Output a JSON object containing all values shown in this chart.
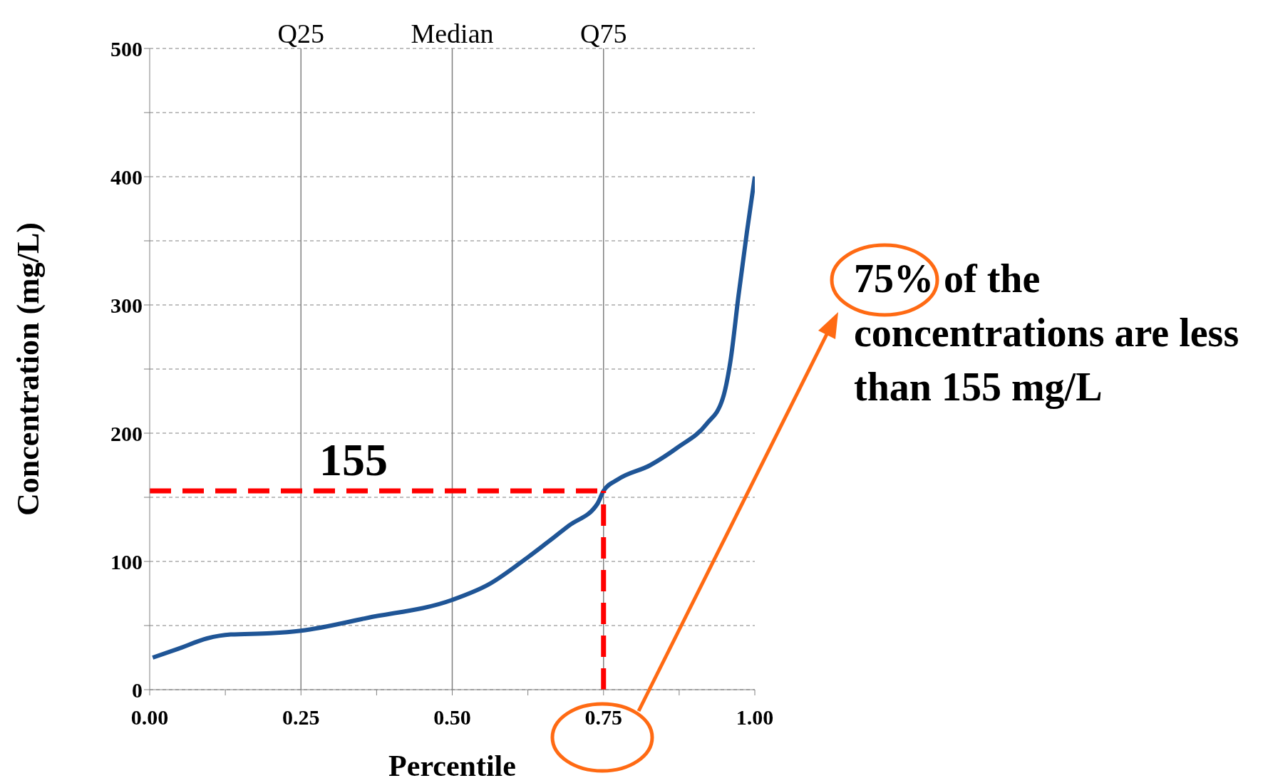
{
  "chart_data": {
    "type": "line",
    "xlabel": "Percentile",
    "ylabel": "Concentration (mg/L)",
    "xlim": [
      0,
      1
    ],
    "ylim": [
      0,
      500
    ],
    "xticks": [
      {
        "value": 0,
        "label": "0.00"
      },
      {
        "value": 0.125,
        "label": null
      },
      {
        "value": 0.25,
        "label": "0.25"
      },
      {
        "value": 0.375,
        "label": null
      },
      {
        "value": 0.5,
        "label": "0.50"
      },
      {
        "value": 0.625,
        "label": null
      },
      {
        "value": 0.75,
        "label": "0.75"
      },
      {
        "value": 0.875,
        "label": null
      },
      {
        "value": 1,
        "label": "1.00"
      }
    ],
    "yticks": [
      0,
      {
        "value": 50,
        "label": null
      },
      100,
      {
        "value": 150,
        "label": null
      },
      200,
      {
        "value": 250,
        "label": null
      },
      300,
      {
        "value": 350,
        "label": null
      },
      400,
      {
        "value": 450,
        "label": null
      },
      500
    ],
    "grid": "y",
    "marker": "none",
    "series": [
      {
        "color": "#1f5596",
        "line_style": "solid",
        "x": [
          0.005,
          0.048,
          0.095,
          0.134,
          0.2,
          0.25,
          0.36,
          0.5,
          0.56,
          0.627,
          0.693,
          0.74,
          0.75,
          0.774,
          0.827,
          0.873,
          0.92,
          0.947,
          0.96,
          0.973,
          0.987,
          1.0
        ],
        "values": [
          25,
          32,
          40,
          43,
          44,
          46,
          56,
          70,
          82,
          104,
          128,
          145,
          155,
          164,
          175,
          189,
          207,
          227,
          257,
          307,
          357,
          400
        ]
      },
      {
        "color": "#ff0000",
        "line_style": "dashed",
        "x": [
          0,
          0.75
        ],
        "values": [
          155,
          155
        ]
      },
      {
        "color": "#ff0000",
        "line_style": "dashed",
        "x": [
          0.75,
          0.75
        ],
        "values": [
          0,
          155
        ]
      }
    ],
    "ref_lines": [
      {
        "axis": "x",
        "value": 0.25,
        "label": "Q25",
        "color": "#808080"
      },
      {
        "axis": "x",
        "value": 0.5,
        "label": "Median",
        "color": "#808080"
      },
      {
        "axis": "x",
        "value": 0.75,
        "label": "Q75",
        "color": "#808080"
      }
    ],
    "annotations": [
      "155",
      "75% of the concentrations are less than 155 mg/L"
    ]
  }
}
